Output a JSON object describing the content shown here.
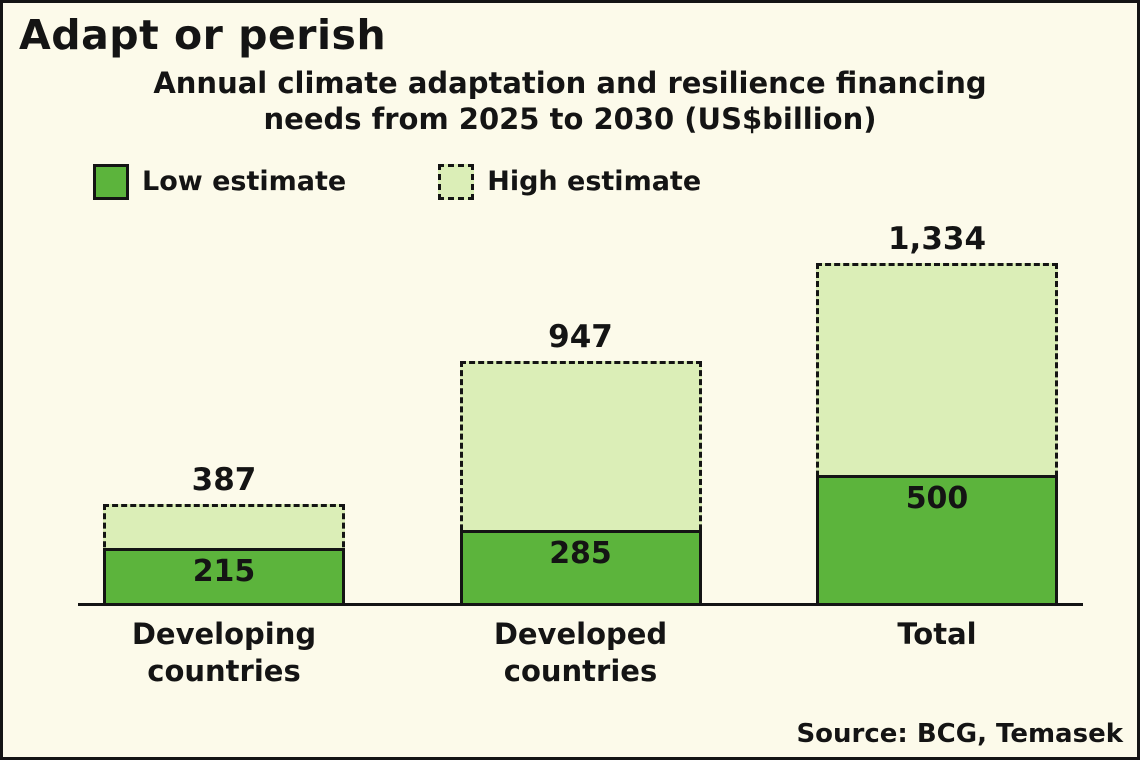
{
  "title": "Adapt or perish",
  "subtitle": {
    "line1": "Annual climate adaptation and resilience financing",
    "line2": "needs from 2025 to 2030 (US$billion)"
  },
  "legend": {
    "low_label": "Low estimate",
    "high_label": "High estimate"
  },
  "source": "Source: BCG, Temasek",
  "colors": {
    "low": "#5cb43c",
    "high": "#dbeeb7",
    "background": "#fcfaea",
    "ink": "#141414"
  },
  "chart_data": {
    "type": "bar",
    "title": "Annual climate adaptation and resilience financing needs from 2025 to 2030 (US$billion)",
    "categories": [
      "Developing countries",
      "Developed countries",
      "Total"
    ],
    "category_lines": [
      [
        "Developing",
        "countries"
      ],
      [
        "Developed",
        "countries"
      ],
      [
        "Total"
      ]
    ],
    "series": [
      {
        "name": "Low estimate",
        "values": [
          215,
          285,
          500
        ]
      },
      {
        "name": "High estimate",
        "values": [
          387,
          947,
          1334
        ]
      }
    ],
    "xlabel": "",
    "ylabel": "",
    "ylim": [
      0,
      1334
    ],
    "grid": false,
    "legend_position": "top-left",
    "value_labels": true,
    "source": "BCG, Temasek"
  }
}
